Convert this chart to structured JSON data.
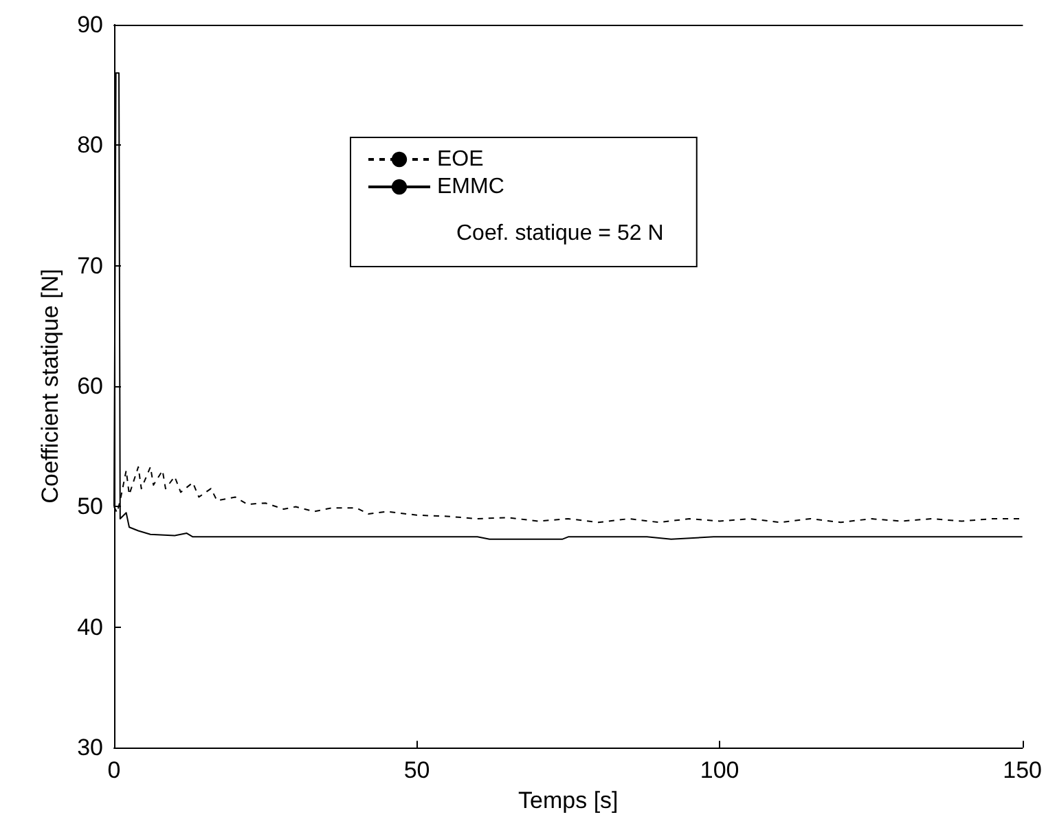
{
  "chart_data": {
    "type": "line",
    "xlabel": "Temps [s]",
    "ylabel": "Coefficient statique [N]",
    "xlim": [
      0,
      150
    ],
    "xticks": [
      0,
      50,
      100,
      150
    ],
    "ylim": [
      30,
      90
    ],
    "yticks": [
      30,
      40,
      50,
      60,
      70,
      80,
      90
    ],
    "grid": false,
    "legend": "top",
    "annotations": [
      "Coef. statique = 52 N"
    ],
    "series": [
      {
        "name": "EOE",
        "color": "#000000",
        "line_style": "dashed",
        "x": [
          0,
          0.5,
          1,
          2,
          2.5,
          4,
          4.5,
          6,
          6.5,
          8,
          8.5,
          10,
          11,
          13,
          14,
          16,
          17,
          20,
          22,
          25,
          28,
          30,
          33,
          36,
          40,
          42,
          45,
          50,
          55,
          60,
          65,
          70,
          75,
          80,
          85,
          90,
          95,
          100,
          105,
          110,
          115,
          120,
          125,
          130,
          135,
          140,
          145,
          150
        ],
        "values": [
          50,
          49.5,
          50.5,
          53,
          51,
          53.3,
          51.5,
          53.3,
          51.8,
          53,
          51.5,
          52.5,
          51.2,
          52,
          50.8,
          51.5,
          50.5,
          50.8,
          50.2,
          50.3,
          49.8,
          50,
          49.6,
          49.9,
          49.9,
          49.4,
          49.6,
          49.3,
          49.2,
          49,
          49.1,
          48.8,
          49,
          48.7,
          49,
          48.7,
          49,
          48.8,
          49,
          48.7,
          49,
          48.7,
          49,
          48.8,
          49,
          48.8,
          49,
          49
        ]
      },
      {
        "name": "EMMC",
        "color": "#000000",
        "line_style": "solid",
        "x": [
          0,
          0.3,
          0.8,
          1,
          2,
          2.5,
          4,
          6,
          10,
          12,
          13,
          16,
          60,
          62,
          66,
          74,
          75,
          88,
          92,
          99,
          150
        ],
        "values": [
          50,
          86,
          86,
          49,
          49.5,
          48.3,
          48,
          47.7,
          47.6,
          47.8,
          47.5,
          47.5,
          47.5,
          47.3,
          47.3,
          47.3,
          47.5,
          47.5,
          47.3,
          47.5,
          47.5
        ]
      }
    ]
  }
}
